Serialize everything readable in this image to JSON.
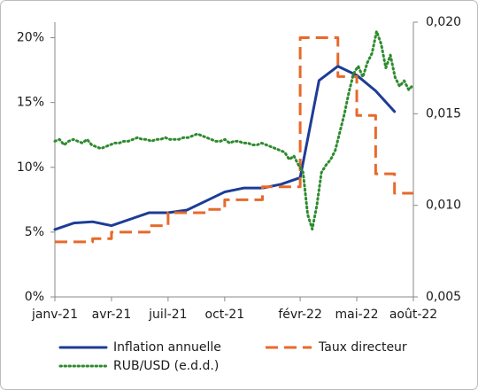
{
  "chart_data": {
    "type": "line",
    "xlim": [
      "2021-01",
      "2022-08"
    ],
    "xticks": [
      {
        "value": "2021-01",
        "label": "janv-21"
      },
      {
        "value": "2021-04",
        "label": "avr-21"
      },
      {
        "value": "2021-07",
        "label": "juil-21"
      },
      {
        "value": "2021-10",
        "label": "oct-21"
      },
      {
        "value": "2022-02",
        "label": "févr-22"
      },
      {
        "value": "2022-05",
        "label": "mai-22"
      },
      {
        "value": "2022-08",
        "label": "août-22"
      }
    ],
    "ylim": [
      0,
      21.2
    ],
    "yticks": [
      {
        "value": 0,
        "label": "0%"
      },
      {
        "value": 5,
        "label": "5%"
      },
      {
        "value": 10,
        "label": "10%"
      },
      {
        "value": 15,
        "label": "15%"
      },
      {
        "value": 20,
        "label": "20%"
      }
    ],
    "y2lim": [
      0.005,
      0.02
    ],
    "y2ticks": [
      {
        "value": 0.005,
        "label": "0,005"
      },
      {
        "value": 0.01,
        "label": "0,010"
      },
      {
        "value": 0.015,
        "label": "0,015"
      },
      {
        "value": 0.02,
        "label": "0,020"
      }
    ],
    "series": [
      {
        "name": "Inflation annuelle",
        "color": "#1c3c96",
        "style": "solid",
        "x": [
          "2021-01",
          "2021-02",
          "2021-03",
          "2021-04",
          "2021-05",
          "2021-06",
          "2021-07",
          "2021-08",
          "2021-09",
          "2021-10",
          "2021-11",
          "2021-12",
          "2022-01",
          "2022-02",
          "2022-03",
          "2022-04",
          "2022-05",
          "2022-06",
          "2022-07"
        ],
        "values": [
          5.2,
          5.7,
          5.8,
          5.5,
          6.0,
          6.5,
          6.5,
          6.7,
          7.4,
          8.1,
          8.4,
          8.4,
          8.7,
          9.2,
          16.7,
          17.8,
          17.1,
          15.9,
          14.3
        ]
      },
      {
        "name": "Taux directeur",
        "color": "#e8692a",
        "style": "dashed",
        "step": true,
        "x": [
          "2021-01",
          "2021-03",
          "2021-04",
          "2021-06",
          "2021-07",
          "2021-09",
          "2021-10",
          "2021-12",
          "2022-02",
          "2022-04",
          "2022-05",
          "2022-06",
          "2022-07"
        ],
        "values": [
          4.25,
          4.5,
          5.0,
          5.5,
          6.5,
          6.75,
          7.5,
          8.5,
          20,
          17,
          14,
          9.5,
          8
        ]
      },
      {
        "name": "RUB/USD (e.d.d.)",
        "color": "#2e8b2e",
        "style": "dotted",
        "axis": "y2",
        "values": [
          0.0135,
          0.0136,
          0.0133,
          0.0135,
          0.0136,
          0.0135,
          0.0134,
          0.0136,
          0.0133,
          0.0132,
          0.0131,
          0.0132,
          0.0133,
          0.0134,
          0.0134,
          0.0135,
          0.0135,
          0.0136,
          0.0137,
          0.0136,
          0.0136,
          0.0135,
          0.0136,
          0.0136,
          0.0137,
          0.0136,
          0.0136,
          0.0136,
          0.0137,
          0.0137,
          0.0138,
          0.0139,
          0.0138,
          0.0137,
          0.0136,
          0.0135,
          0.0135,
          0.0136,
          0.0134,
          0.0135,
          0.0135,
          0.0134,
          0.0134,
          0.0133,
          0.0133,
          0.0134,
          0.0133,
          0.0132,
          0.0131,
          0.013,
          0.0129,
          0.0125,
          0.0127,
          0.0122,
          0.0118,
          0.0095,
          0.0087,
          0.01,
          0.0118,
          0.0122,
          0.0125,
          0.013,
          0.014,
          0.015,
          0.0162,
          0.0172,
          0.0176,
          0.017,
          0.0178,
          0.0183,
          0.0195,
          0.0188,
          0.0175,
          0.0182,
          0.017,
          0.0165,
          0.0168,
          0.0163,
          0.0166
        ]
      }
    ]
  }
}
